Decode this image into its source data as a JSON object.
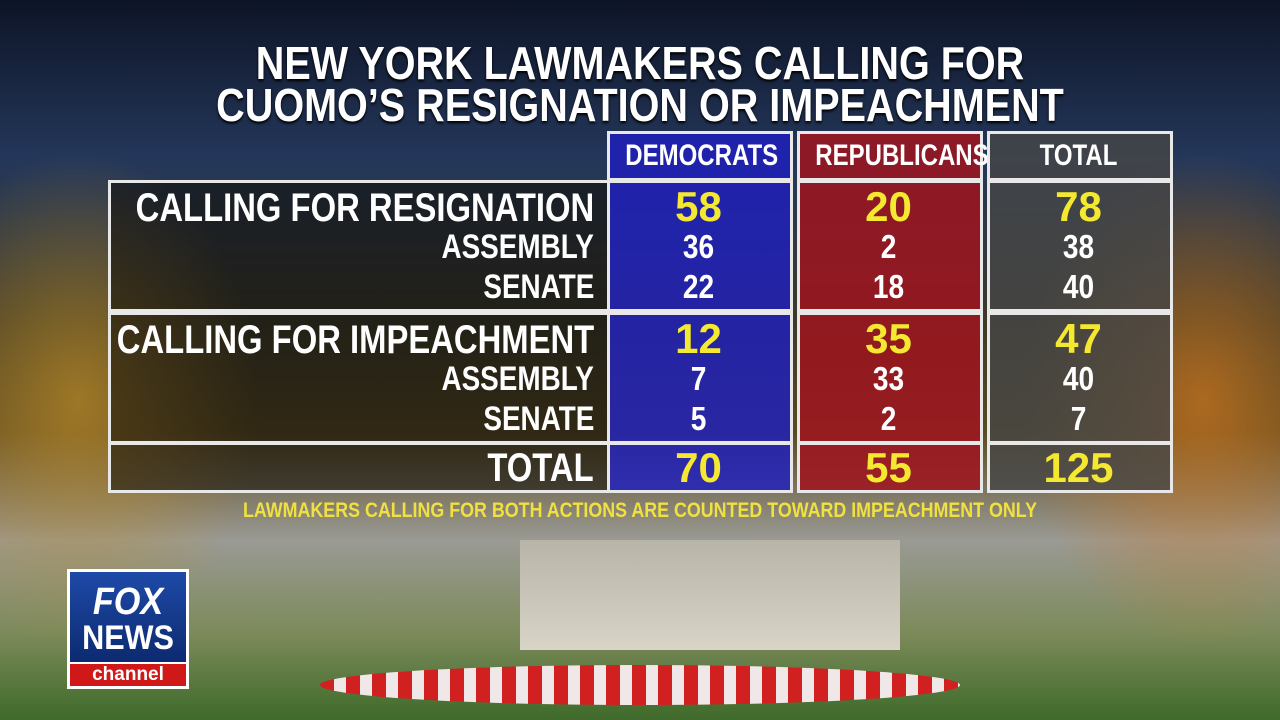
{
  "title": [
    "NEW YORK LAWMAKERS CALLING FOR",
    "CUOMO’S RESIGNATION OR IMPEACHMENT"
  ],
  "table": {
    "columns": [
      "DEMOCRATS",
      "REPUBLICANS",
      "TOTAL"
    ],
    "sections": [
      {
        "label": "CALLING FOR RESIGNATION",
        "values": [
          58,
          20,
          78
        ],
        "rows": [
          {
            "label": "ASSEMBLY",
            "values": [
              36,
              2,
              38
            ]
          },
          {
            "label": "SENATE",
            "values": [
              22,
              18,
              40
            ]
          }
        ]
      },
      {
        "label": "CALLING FOR IMPEACHMENT",
        "values": [
          12,
          35,
          47
        ],
        "rows": [
          {
            "label": "ASSEMBLY",
            "values": [
              7,
              33,
              40
            ]
          },
          {
            "label": "SENATE",
            "values": [
              5,
              2,
              7
            ]
          }
        ]
      }
    ],
    "total": {
      "label": "TOTAL",
      "values": [
        70,
        55,
        125
      ]
    }
  },
  "footnote": "LAWMAKERS CALLING FOR BOTH ACTIONS ARE COUNTED TOWARD IMPEACHMENT ONLY",
  "logo": {
    "line1": "FOX",
    "line2": "NEWS",
    "line3": "channel"
  }
}
